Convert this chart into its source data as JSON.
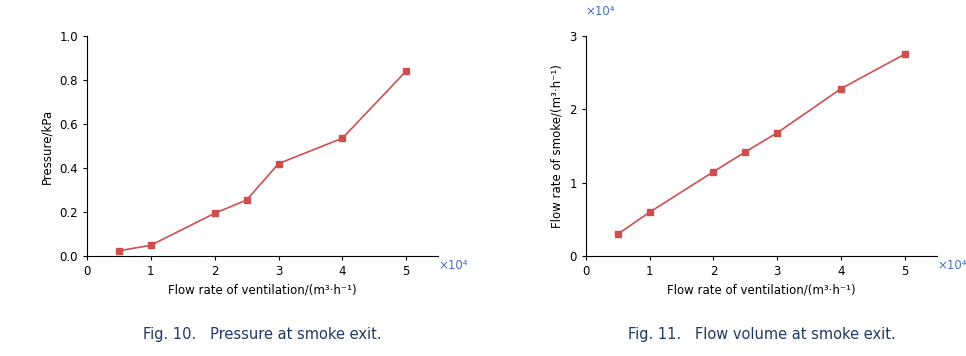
{
  "fig10": {
    "x_raw": [
      5000,
      10000,
      20000,
      25000,
      30000,
      40000,
      50000
    ],
    "x_scaled": [
      0.5,
      1.0,
      2.0,
      2.5,
      3.0,
      4.0,
      5.0
    ],
    "y": [
      0.025,
      0.05,
      0.195,
      0.255,
      0.42,
      0.535,
      0.84
    ],
    "xlabel": "Flow rate of ventilation/(m³·h⁻¹)",
    "ylabel": "Pressure/kPa",
    "xlim": [
      0,
      5.5
    ],
    "ylim": [
      0,
      1.0
    ],
    "xticks": [
      0,
      1,
      2,
      3,
      4,
      5
    ],
    "yticks": [
      0.0,
      0.2,
      0.4,
      0.6,
      0.8,
      1.0
    ],
    "xscale_label": "×10⁴",
    "caption": "Fig. 10.   Pressure at smoke exit.",
    "color": "#cd4f4f",
    "marker": "s",
    "markersize": 5,
    "linewidth": 1.2
  },
  "fig11": {
    "x_scaled": [
      0.5,
      1.0,
      2.0,
      2.5,
      3.0,
      4.0,
      5.0
    ],
    "y_scaled": [
      0.3,
      0.6,
      1.15,
      1.42,
      1.68,
      2.28,
      2.75
    ],
    "xlabel": "Flow rate of ventilation/(m³·h⁻¹)",
    "ylabel": "Flow rate of smoke/(m³·h⁻¹)",
    "xlim": [
      0,
      5.5
    ],
    "ylim": [
      0,
      3.0
    ],
    "xticks": [
      0,
      1,
      2,
      3,
      4,
      5
    ],
    "yticks": [
      0,
      1,
      2,
      3
    ],
    "xscale_label": "×10⁴",
    "yscale_label": "×10⁴",
    "caption": "Fig. 11.   Flow volume at smoke exit.",
    "color": "#cd4f4f",
    "marker": "s",
    "markersize": 5,
    "linewidth": 1.2
  },
  "caption_color": "#1f3864",
  "caption_fontsize": 10.5,
  "axis_label_fontsize": 8.5,
  "tick_fontsize": 8.5,
  "scale_label_color": "#4472c4",
  "scale_label_fontsize": 8.5
}
